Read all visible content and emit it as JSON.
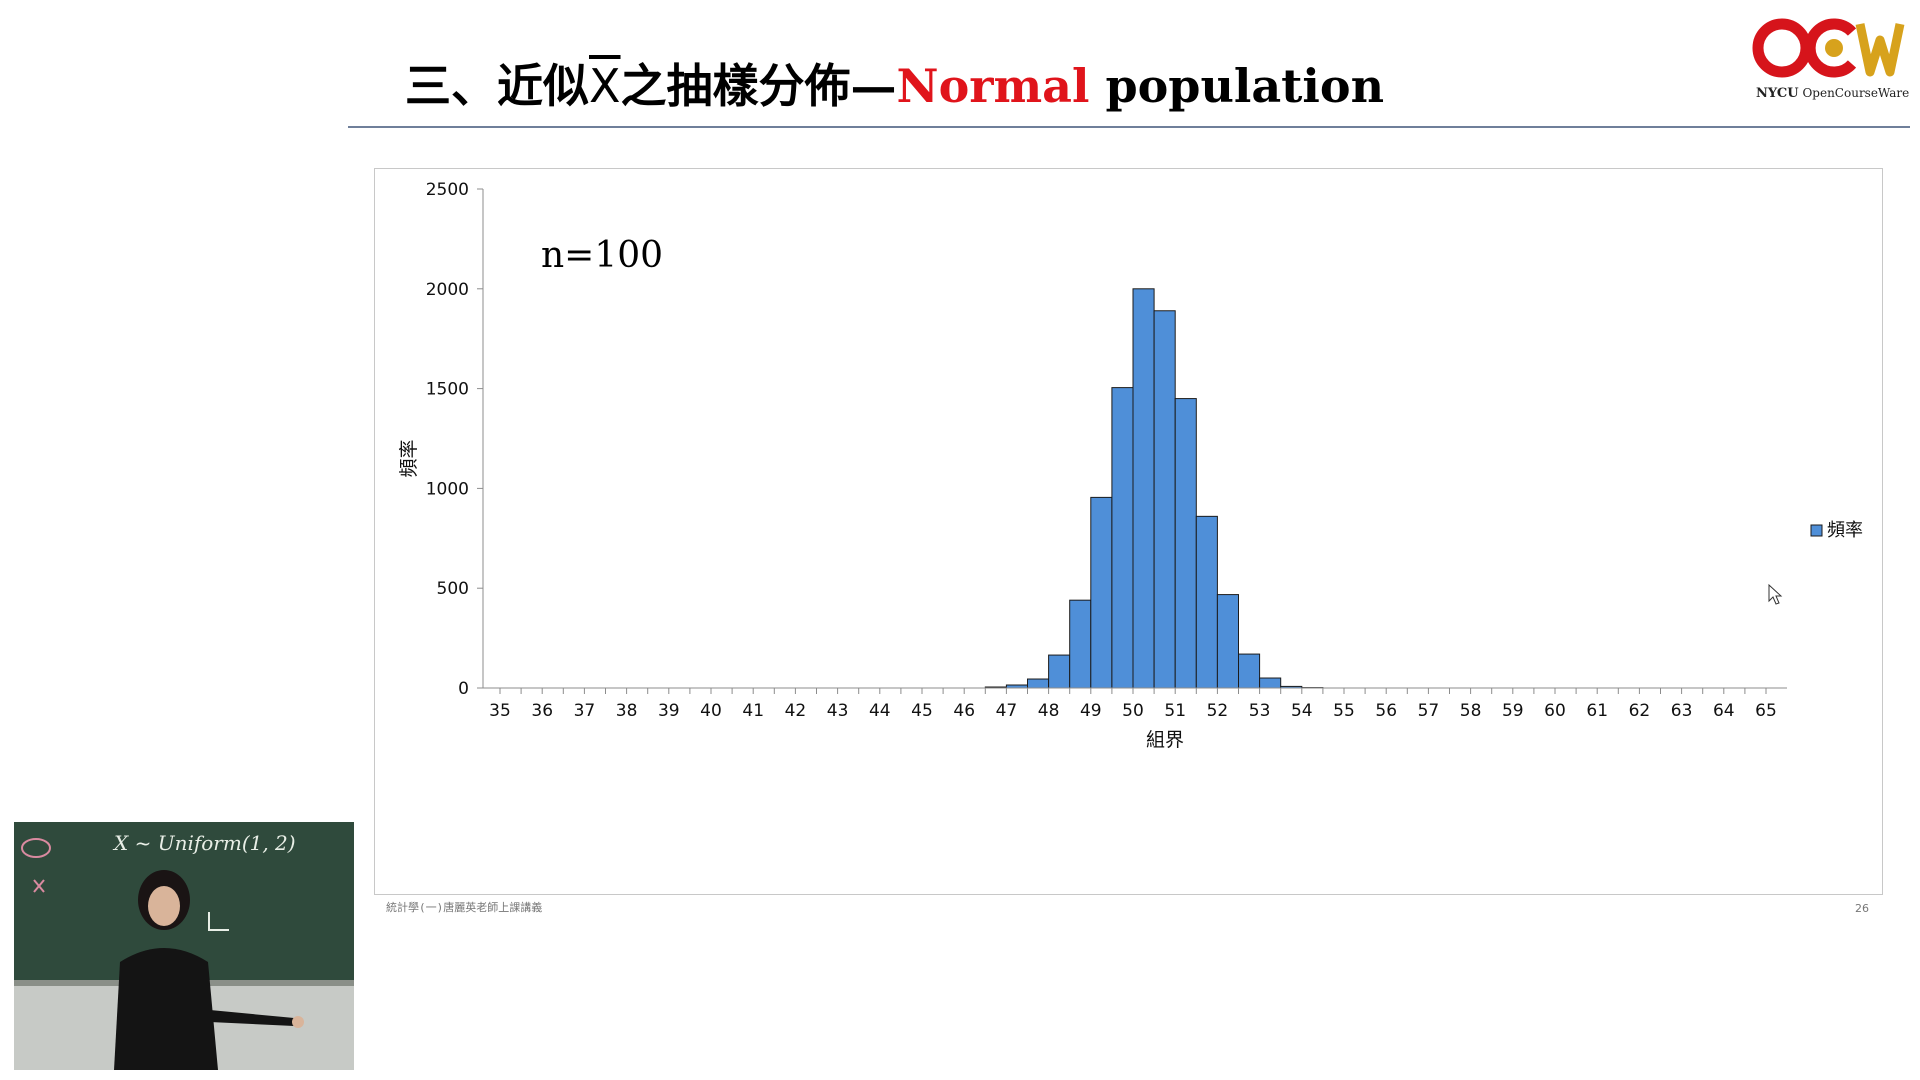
{
  "slide": {
    "title_prefix": "三、近似",
    "title_symbol": "X",
    "title_middle": "之抽樣分佈—",
    "title_highlight": "Normal",
    "title_suffix": " population",
    "footer_left": "統計學(一)唐麗英老師上課講義",
    "page_number": "26",
    "highlight_color": "#e0141b"
  },
  "logo": {
    "main": "NYCU",
    "sub": "OpenCourseWare",
    "red": "#d6141b",
    "gold": "#d7a21c"
  },
  "webcam": {
    "board_text": "X ~ Uniform(1, 2)"
  },
  "chart_data": {
    "type": "bar",
    "annotation": "n=100",
    "xlabel": "組界",
    "ylabel": "頻率",
    "legend": {
      "label": "頻率",
      "position": "right"
    },
    "grid": false,
    "bar_color": "#4f8fd8",
    "ylim": [
      0,
      2500
    ],
    "yticks": [
      0,
      500,
      1000,
      1500,
      2000,
      2500
    ],
    "x_tick_labels": [
      "35",
      "36",
      "37",
      "38",
      "39",
      "40",
      "41",
      "42",
      "43",
      "44",
      "45",
      "46",
      "47",
      "48",
      "49",
      "50",
      "51",
      "52",
      "53",
      "54",
      "55",
      "56",
      "57",
      "58",
      "59",
      "60",
      "61",
      "62",
      "63",
      "64",
      "65"
    ],
    "bins": [
      {
        "from": 46.5,
        "to": 47.0,
        "value": 5
      },
      {
        "from": 47.0,
        "to": 47.5,
        "value": 15
      },
      {
        "from": 47.5,
        "to": 48.0,
        "value": 45
      },
      {
        "from": 48.0,
        "to": 48.5,
        "value": 165
      },
      {
        "from": 48.5,
        "to": 49.0,
        "value": 440
      },
      {
        "from": 49.0,
        "to": 49.5,
        "value": 955
      },
      {
        "from": 49.5,
        "to": 50.0,
        "value": 1505
      },
      {
        "from": 50.0,
        "to": 50.5,
        "value": 2000
      },
      {
        "from": 50.5,
        "to": 51.0,
        "value": 1890
      },
      {
        "from": 51.0,
        "to": 51.5,
        "value": 1450
      },
      {
        "from": 51.5,
        "to": 52.0,
        "value": 860
      },
      {
        "from": 52.0,
        "to": 52.5,
        "value": 468
      },
      {
        "from": 52.5,
        "to": 53.0,
        "value": 170
      },
      {
        "from": 53.0,
        "to": 53.5,
        "value": 50
      },
      {
        "from": 53.5,
        "to": 54.0,
        "value": 8
      },
      {
        "from": 54.0,
        "to": 54.5,
        "value": 2
      }
    ]
  }
}
